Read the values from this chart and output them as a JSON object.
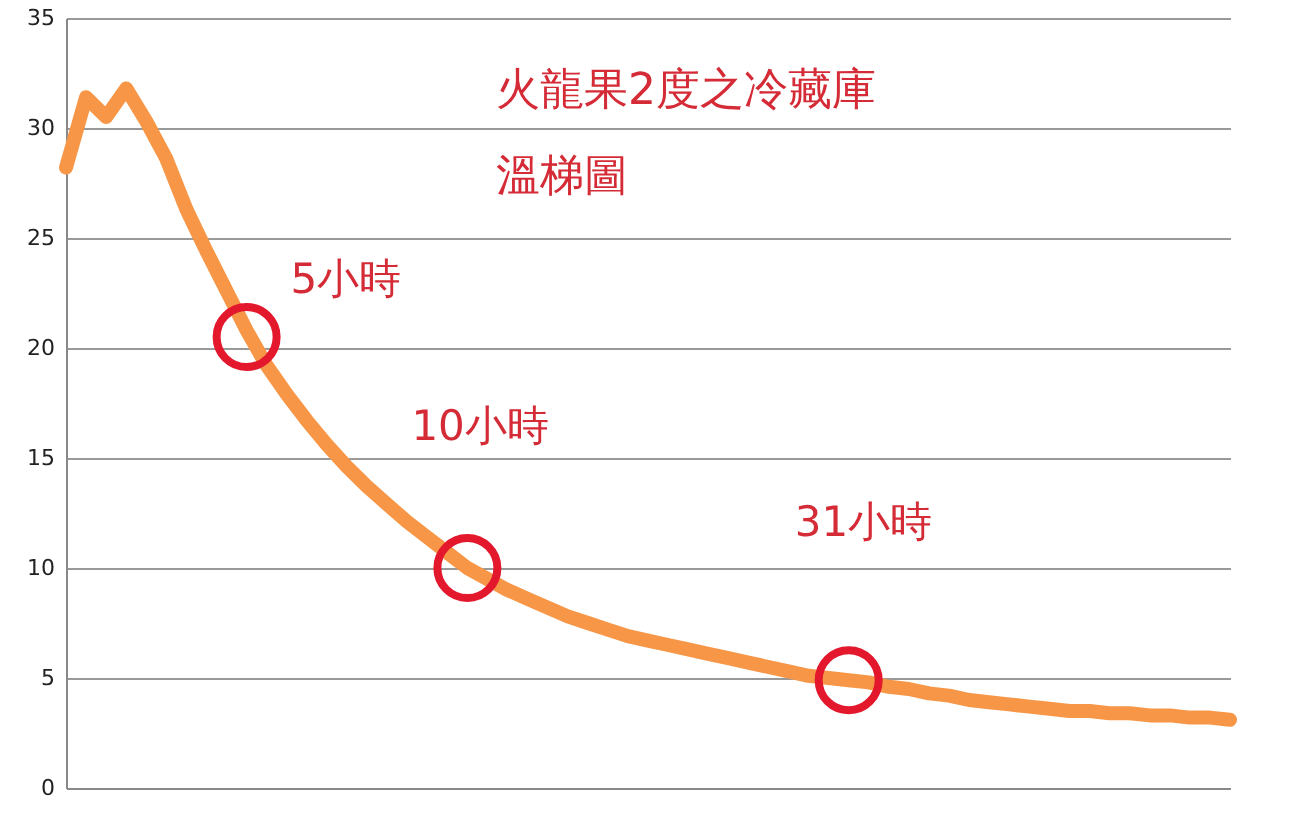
{
  "chart_data": {
    "type": "line",
    "title": "火龍果2度之冷藏庫",
    "subtitle": "溫梯圖",
    "categories": [
      null,
      null,
      null,
      null,
      null,
      null,
      null,
      null,
      null,
      null,
      null,
      null,
      null,
      null,
      null,
      null,
      null,
      null,
      null,
      null,
      null,
      null,
      null,
      null,
      null,
      null,
      null,
      null,
      null,
      null,
      null,
      null,
      null,
      null,
      null,
      null,
      null,
      null,
      null,
      null,
      null,
      null,
      null,
      null,
      null,
      null,
      null,
      null,
      null,
      null,
      null,
      null,
      null,
      null,
      null,
      null,
      null,
      null,
      null
    ],
    "series": [
      {
        "color": "#f79646",
        "values": [
          28.2,
          31.4,
          30.5,
          31.8,
          30.3,
          28.6,
          26.3,
          24.4,
          22.6,
          20.8,
          19.2,
          17.9,
          16.7,
          15.6,
          14.6,
          13.7,
          12.9,
          12.1,
          11.4,
          10.7,
          10.0,
          9.5,
          9.0,
          8.6,
          8.2,
          7.8,
          7.5,
          7.2,
          6.9,
          6.7,
          6.5,
          6.3,
          6.1,
          5.9,
          5.7,
          5.5,
          5.3,
          5.1,
          5.0,
          4.9,
          4.8,
          4.6,
          4.5,
          4.3,
          4.2,
          4.0,
          3.9,
          3.8,
          3.7,
          3.6,
          3.5,
          3.5,
          3.4,
          3.4,
          3.3,
          3.3,
          3.2,
          3.2,
          3.1
        ]
      },
      {
        "type": "scatter",
        "color": "#e3182d",
        "values": [
          null,
          null,
          null,
          null,
          null,
          null,
          null,
          null,
          null,
          20.5,
          null,
          null,
          null,
          null,
          null,
          null,
          null,
          null,
          null,
          null,
          10.0,
          null,
          null,
          null,
          null,
          null,
          null,
          null,
          null,
          null,
          null,
          null,
          null,
          null,
          null,
          null,
          null,
          null,
          null,
          4.9,
          null,
          null,
          null,
          null,
          null,
          null,
          null,
          null,
          null,
          null,
          null,
          null,
          null,
          null,
          null,
          null,
          null,
          null,
          null
        ]
      }
    ],
    "annotations": [
      "5小時",
      "10小時",
      "31小時"
    ],
    "ylim": [
      0,
      35
    ],
    "yticks": [
      0,
      5,
      10,
      15,
      20,
      25,
      30,
      35
    ],
    "grid": "y",
    "tick_labels": "y",
    "line_style": "solid"
  }
}
